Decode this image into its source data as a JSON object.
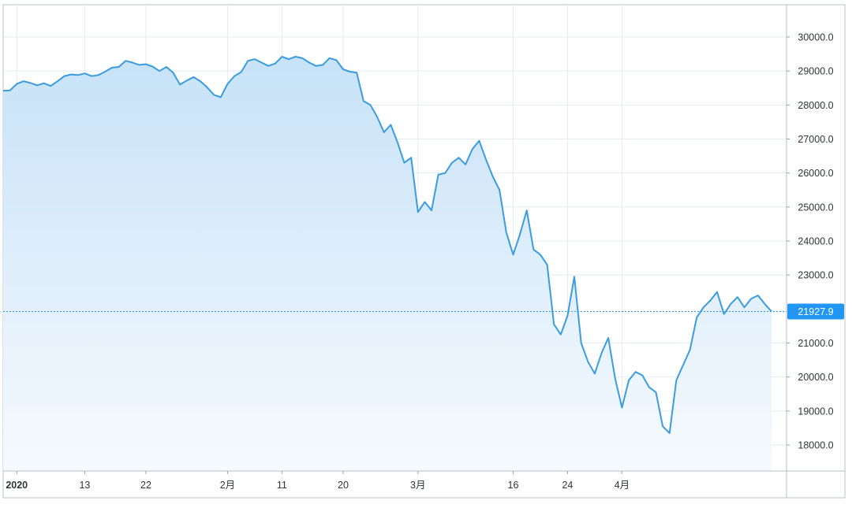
{
  "chart_data": {
    "type": "area",
    "title": "",
    "xlabel": "",
    "ylabel": "",
    "ylim": [
      17500,
      30600
    ],
    "grid": true,
    "y_ticks": [
      30000,
      29000,
      28000,
      27000,
      26000,
      25000,
      24000,
      23000,
      21000,
      20000,
      19000,
      18000
    ],
    "y_tick_labels": [
      "30000.0",
      "29000.0",
      "28000.0",
      "27000.0",
      "26000.0",
      "25000.0",
      "24000.0",
      "23000.0",
      "21000.0",
      "20000.0",
      "19000.0",
      "18000.0"
    ],
    "x_ticks": [
      {
        "date": "2020-01-03",
        "label": "2020",
        "bold": true
      },
      {
        "date": "2020-01-13",
        "label": "13",
        "bold": false
      },
      {
        "date": "2020-01-22",
        "label": "22",
        "bold": false
      },
      {
        "date": "2020-02-03",
        "label": "2月",
        "bold": false
      },
      {
        "date": "2020-02-11",
        "label": "11",
        "bold": false
      },
      {
        "date": "2020-02-20",
        "label": "20",
        "bold": false
      },
      {
        "date": "2020-03-02",
        "label": "3月",
        "bold": false
      },
      {
        "date": "2020-03-16",
        "label": "16",
        "bold": false
      },
      {
        "date": "2020-03-24",
        "label": "24",
        "bold": false
      },
      {
        "date": "2020-04-01",
        "label": "4月",
        "bold": false
      }
    ],
    "last_value": 21927.9,
    "last_value_label": "21927.9",
    "colors": {
      "line": "#3a9ce0",
      "fill_top": "#c7e2f8",
      "fill_bottom": "#f6fafe",
      "grid": "#e4ebf2",
      "axis": "#9aa1a9",
      "price_tag": "#2196f3"
    },
    "series": [
      {
        "points": [
          [
            "2020-01-01",
            28420
          ],
          [
            "2020-01-02",
            28430
          ],
          [
            "2020-01-03",
            28620
          ],
          [
            "2020-01-04",
            28700
          ],
          [
            "2020-01-05",
            28650
          ],
          [
            "2020-01-06",
            28580
          ],
          [
            "2020-01-07",
            28640
          ],
          [
            "2020-01-08",
            28560
          ],
          [
            "2020-01-09",
            28700
          ],
          [
            "2020-01-10",
            28850
          ],
          [
            "2020-01-11",
            28900
          ],
          [
            "2020-01-12",
            28880
          ],
          [
            "2020-01-13",
            28930
          ],
          [
            "2020-01-14",
            28850
          ],
          [
            "2020-01-15",
            28880
          ],
          [
            "2020-01-16",
            28980
          ],
          [
            "2020-01-17",
            29100
          ],
          [
            "2020-01-18",
            29120
          ],
          [
            "2020-01-19",
            29300
          ],
          [
            "2020-01-20",
            29250
          ],
          [
            "2020-01-21",
            29180
          ],
          [
            "2020-01-22",
            29200
          ],
          [
            "2020-01-23",
            29130
          ],
          [
            "2020-01-24",
            29000
          ],
          [
            "2020-01-25",
            29120
          ],
          [
            "2020-01-26",
            28950
          ],
          [
            "2020-01-27",
            28600
          ],
          [
            "2020-01-28",
            28720
          ],
          [
            "2020-01-29",
            28820
          ],
          [
            "2020-01-30",
            28700
          ],
          [
            "2020-01-31",
            28520
          ],
          [
            "2020-02-01",
            28300
          ],
          [
            "2020-02-02",
            28230
          ],
          [
            "2020-02-03",
            28620
          ],
          [
            "2020-02-04",
            28850
          ],
          [
            "2020-02-05",
            28970
          ],
          [
            "2020-02-06",
            29300
          ],
          [
            "2020-02-07",
            29350
          ],
          [
            "2020-02-08",
            29250
          ],
          [
            "2020-02-09",
            29150
          ],
          [
            "2020-02-10",
            29220
          ],
          [
            "2020-02-11",
            29420
          ],
          [
            "2020-02-12",
            29350
          ],
          [
            "2020-02-13",
            29420
          ],
          [
            "2020-02-14",
            29380
          ],
          [
            "2020-02-15",
            29250
          ],
          [
            "2020-02-16",
            29150
          ],
          [
            "2020-02-17",
            29180
          ],
          [
            "2020-02-18",
            29380
          ],
          [
            "2020-02-19",
            29320
          ],
          [
            "2020-02-20",
            29050
          ],
          [
            "2020-02-21",
            28980
          ],
          [
            "2020-02-22",
            28950
          ],
          [
            "2020-02-23",
            28120
          ],
          [
            "2020-02-24",
            28000
          ],
          [
            "2020-02-25",
            27650
          ],
          [
            "2020-02-26",
            27200
          ],
          [
            "2020-02-27",
            27420
          ],
          [
            "2020-02-28",
            26900
          ],
          [
            "2020-02-29",
            26300
          ],
          [
            "2020-03-01",
            26450
          ],
          [
            "2020-03-02",
            24850
          ],
          [
            "2020-03-03",
            25150
          ],
          [
            "2020-03-04",
            24900
          ],
          [
            "2020-03-05",
            25950
          ],
          [
            "2020-03-06",
            26000
          ],
          [
            "2020-03-07",
            26300
          ],
          [
            "2020-03-08",
            26450
          ],
          [
            "2020-03-09",
            26250
          ],
          [
            "2020-03-10",
            26700
          ],
          [
            "2020-03-11",
            26950
          ],
          [
            "2020-03-12",
            26400
          ],
          [
            "2020-03-13",
            25900
          ],
          [
            "2020-03-14",
            25500
          ],
          [
            "2020-03-15",
            24250
          ],
          [
            "2020-03-16",
            23600
          ],
          [
            "2020-03-17",
            24200
          ],
          [
            "2020-03-18",
            24900
          ],
          [
            "2020-03-19",
            23750
          ],
          [
            "2020-03-20",
            23600
          ],
          [
            "2020-03-21",
            23300
          ],
          [
            "2020-03-22",
            21550
          ],
          [
            "2020-03-23",
            21250
          ],
          [
            "2020-03-24",
            21800
          ],
          [
            "2020-03-25",
            22950
          ],
          [
            "2020-03-26",
            21000
          ],
          [
            "2020-03-27",
            20450
          ],
          [
            "2020-03-28",
            20100
          ],
          [
            "2020-03-29",
            20700
          ],
          [
            "2020-03-30",
            21150
          ],
          [
            "2020-03-31",
            19950
          ],
          [
            "2020-04-01",
            19100
          ],
          [
            "2020-04-02",
            19900
          ],
          [
            "2020-04-03",
            20150
          ],
          [
            "2020-04-04",
            20050
          ],
          [
            "2020-04-05",
            19700
          ],
          [
            "2020-04-06",
            19550
          ],
          [
            "2020-04-07",
            18550
          ],
          [
            "2020-04-08",
            18350
          ],
          [
            "2020-04-09",
            19900
          ],
          [
            "2020-04-10",
            20350
          ],
          [
            "2020-04-11",
            20800
          ],
          [
            "2020-04-12",
            21750
          ],
          [
            "2020-04-13",
            22050
          ],
          [
            "2020-04-14",
            22250
          ],
          [
            "2020-04-15",
            22500
          ],
          [
            "2020-04-16",
            21850
          ],
          [
            "2020-04-17",
            22150
          ],
          [
            "2020-04-18",
            22350
          ],
          [
            "2020-04-19",
            22050
          ],
          [
            "2020-04-20",
            22300
          ],
          [
            "2020-04-21",
            22400
          ],
          [
            "2020-04-22",
            22150
          ],
          [
            "2020-04-23",
            21927.9
          ]
        ]
      }
    ]
  }
}
